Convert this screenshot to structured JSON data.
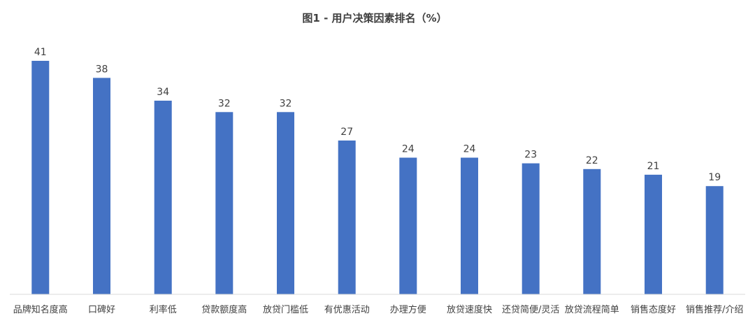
{
  "chart_data": {
    "type": "bar",
    "title": "图1 - 用户决策因素排名（%）",
    "categories": [
      "品牌知名度高",
      "口碑好",
      "利率低",
      "贷款额度高",
      "放贷门槛低",
      "有优惠活动",
      "办理方便",
      "放贷速度快",
      "还贷简便/灵活",
      "放贷流程简单",
      "销售态度好",
      "销售推荐/介绍"
    ],
    "values": [
      41,
      38,
      34,
      32,
      32,
      27,
      24,
      24,
      23,
      22,
      21,
      19
    ],
    "xlabel": "",
    "ylabel": "",
    "ylim": [
      0,
      41
    ],
    "grid": false,
    "legend": "none",
    "bar_color": "#4472C4"
  }
}
